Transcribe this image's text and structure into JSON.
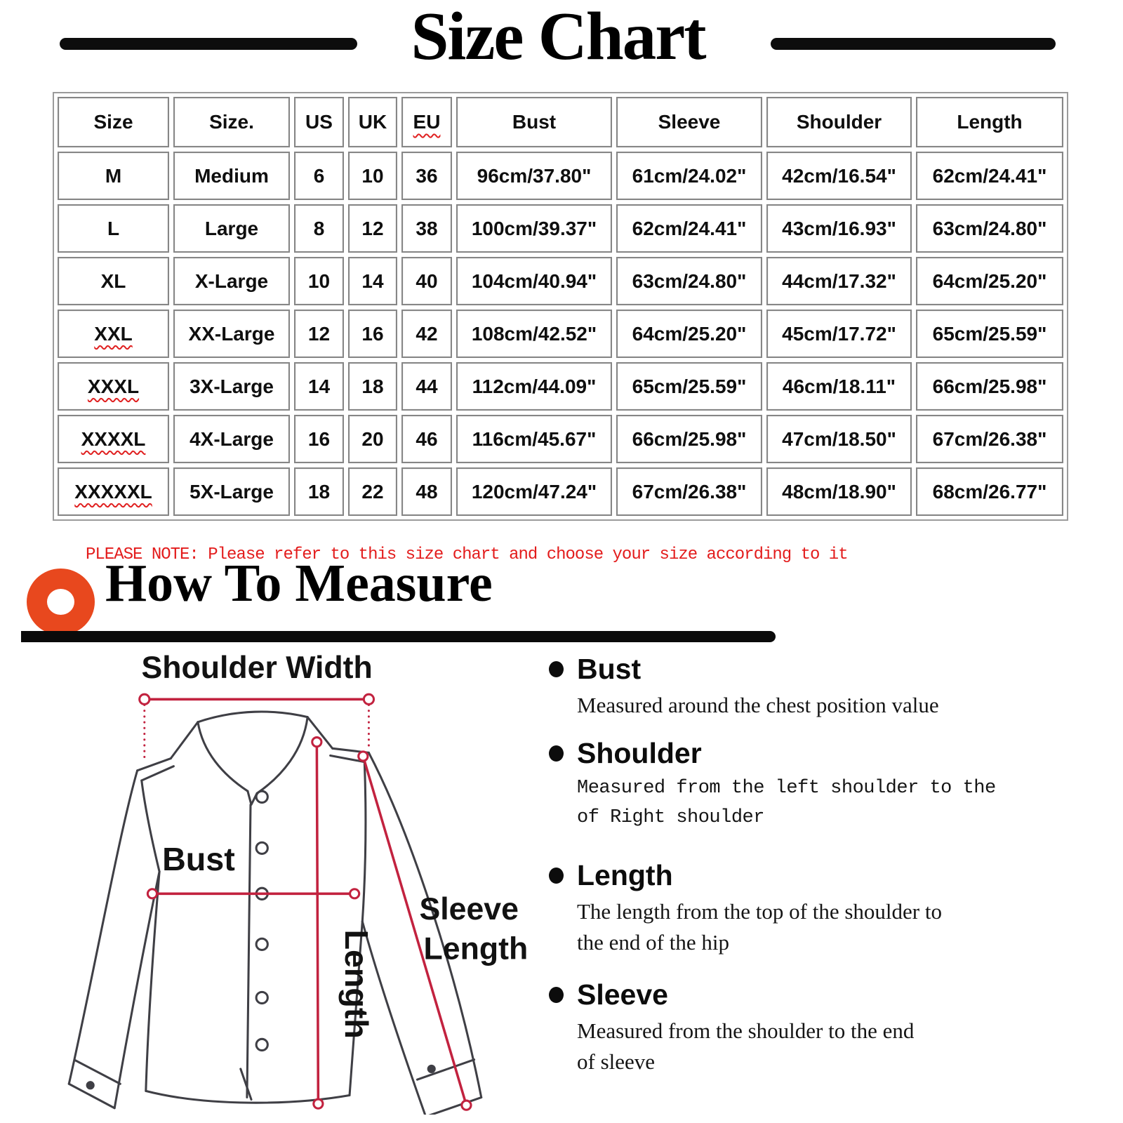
{
  "title": "Size Chart",
  "size_table": {
    "headers": [
      "Size",
      "Size.",
      "US",
      "UK",
      "EU",
      "Bust",
      "Sleeve",
      "Shoulder",
      "Length"
    ],
    "header_squiggles": [
      false,
      false,
      false,
      false,
      true,
      false,
      false,
      false,
      false
    ],
    "rows": [
      {
        "squiggle": false,
        "cells": [
          "M",
          "Medium",
          "6",
          "10",
          "36",
          "96cm/37.80\"",
          "61cm/24.02\"",
          "42cm/16.54\"",
          "62cm/24.41\""
        ]
      },
      {
        "squiggle": false,
        "cells": [
          "L",
          "Large",
          "8",
          "12",
          "38",
          "100cm/39.37\"",
          "62cm/24.41\"",
          "43cm/16.93\"",
          "63cm/24.80\""
        ]
      },
      {
        "squiggle": false,
        "cells": [
          "XL",
          "X-Large",
          "10",
          "14",
          "40",
          "104cm/40.94\"",
          "63cm/24.80\"",
          "44cm/17.32\"",
          "64cm/25.20\""
        ]
      },
      {
        "squiggle": true,
        "cells": [
          "XXL",
          "XX-Large",
          "12",
          "16",
          "42",
          "108cm/42.52\"",
          "64cm/25.20\"",
          "45cm/17.72\"",
          "65cm/25.59\""
        ]
      },
      {
        "squiggle": true,
        "cells": [
          "XXXL",
          "3X-Large",
          "14",
          "18",
          "44",
          "112cm/44.09\"",
          "65cm/25.59\"",
          "46cm/18.11\"",
          "66cm/25.98\""
        ]
      },
      {
        "squiggle": true,
        "cells": [
          "XXXXL",
          "4X-Large",
          "16",
          "20",
          "46",
          "116cm/45.67\"",
          "66cm/25.98\"",
          "47cm/18.50\"",
          "67cm/26.38\""
        ]
      },
      {
        "squiggle": true,
        "cells": [
          "XXXXXL",
          "5X-Large",
          "18",
          "22",
          "48",
          "120cm/47.24\"",
          "67cm/26.38\"",
          "48cm/18.90\"",
          "68cm/26.77\""
        ]
      }
    ]
  },
  "note": "PLEASE NOTE: Please refer to this size chart and choose your size according to it",
  "how_to_measure": {
    "heading": "How To Measure",
    "diagram_labels": {
      "shoulder_width": "Shoulder Width",
      "bust": "Bust",
      "length": "Length",
      "sleeve_line1": "Sleeve",
      "sleeve_line2": "Length"
    },
    "items": [
      {
        "term": "Bust",
        "style": "serif",
        "desc": "Measured around the chest position value"
      },
      {
        "term": "Shoulder",
        "style": "mono",
        "desc": "Measured from the left shoulder to the\nof Right shoulder"
      },
      {
        "term": "Length",
        "style": "serif",
        "desc": "The length from the top of the shoulder to\nthe end of the hip"
      },
      {
        "term": "Sleeve",
        "style": "serif",
        "desc": "Measured from the shoulder to the end\nof sleeve"
      }
    ]
  },
  "colors": {
    "note_red": "#e31c1c",
    "measure_line_red": "#c2223f",
    "donut_orange": "#e8481e",
    "table_border_gray": "#868686"
  }
}
